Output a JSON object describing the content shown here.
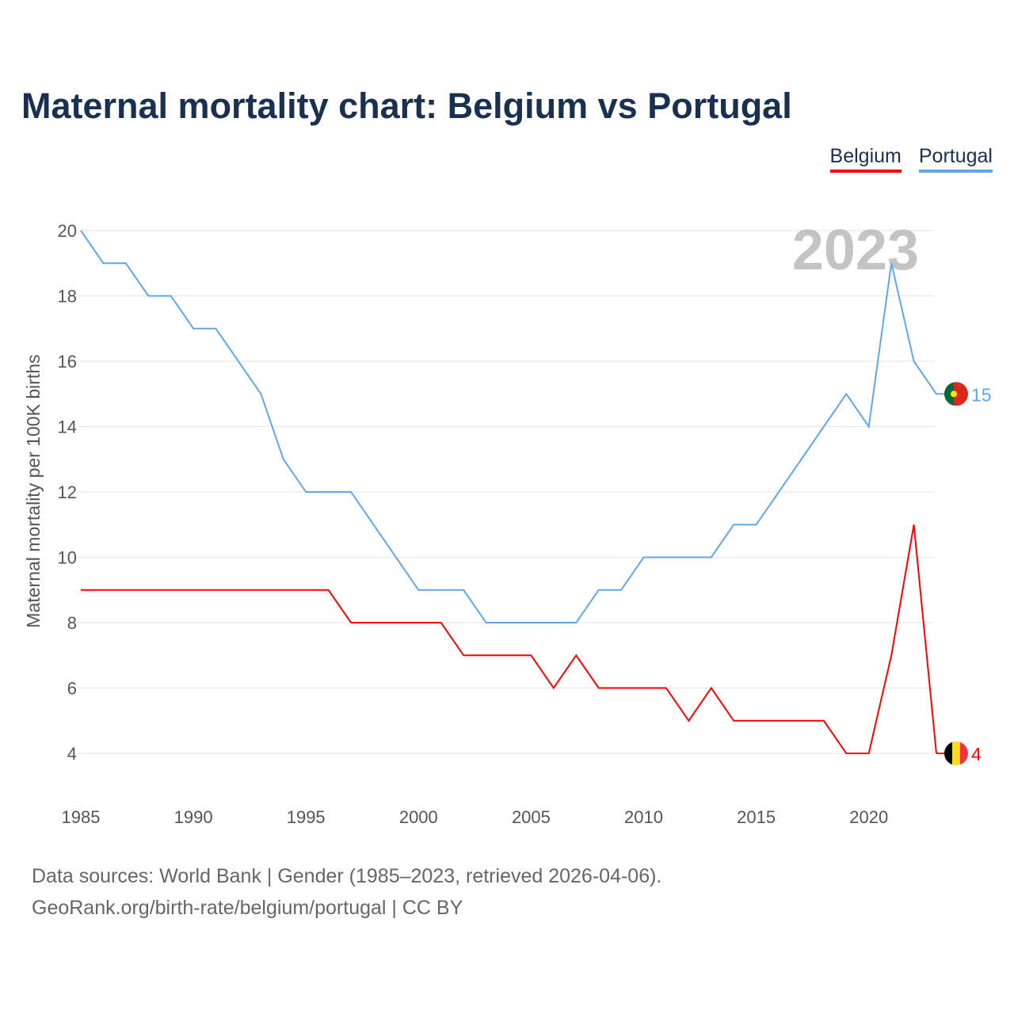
{
  "title": "Maternal mortality chart: Belgium vs Portugal",
  "legend": [
    {
      "label": "Belgium",
      "color": "#ff0000"
    },
    {
      "label": "Portugal",
      "color": "#5fa8ec"
    }
  ],
  "year_label": "2023",
  "footer": {
    "line1": "Data sources: World Bank | Gender (1985–2023, retrieved 2026-04-06).",
    "line2": "GeoRank.org/birth-rate/belgium/portugal | CC BY"
  },
  "chart_data": {
    "type": "line",
    "title": "Maternal mortality chart: Belgium vs Portugal",
    "xlabel": "",
    "ylabel": "Maternal mortality per 100K births",
    "xlim": [
      1985,
      2023
    ],
    "ylim": [
      4,
      20
    ],
    "x_ticks": [
      1985,
      1990,
      1995,
      2000,
      2005,
      2010,
      2015,
      2020
    ],
    "y_ticks": [
      4,
      6,
      8,
      10,
      12,
      14,
      16,
      18,
      20
    ],
    "grid": true,
    "legend_position": "top-right",
    "x": [
      1985,
      1986,
      1987,
      1988,
      1989,
      1990,
      1991,
      1992,
      1993,
      1994,
      1995,
      1996,
      1997,
      1998,
      1999,
      2000,
      2001,
      2002,
      2003,
      2004,
      2005,
      2006,
      2007,
      2008,
      2009,
      2010,
      2011,
      2012,
      2013,
      2014,
      2015,
      2016,
      2017,
      2018,
      2019,
      2020,
      2021,
      2022,
      2023
    ],
    "series": [
      {
        "name": "Belgium",
        "color": "#ff0000",
        "end_label": "4",
        "values": [
          9,
          9,
          9,
          9,
          9,
          9,
          9,
          9,
          9,
          9,
          9,
          9,
          8,
          8,
          8,
          8,
          8,
          7,
          7,
          7,
          7,
          6,
          7,
          6,
          6,
          6,
          6,
          5,
          6,
          5,
          5,
          5,
          5,
          5,
          4,
          4,
          7,
          11,
          4
        ]
      },
      {
        "name": "Portugal",
        "color": "#5fa8ec",
        "end_label": "15",
        "values": [
          20,
          19,
          19,
          18,
          18,
          17,
          17,
          16,
          15,
          13,
          12,
          12,
          12,
          11,
          10,
          9,
          9,
          9,
          8,
          8,
          8,
          8,
          8,
          9,
          9,
          10,
          10,
          10,
          10,
          11,
          11,
          12,
          13,
          14,
          15,
          14,
          19,
          16,
          15
        ]
      }
    ]
  }
}
